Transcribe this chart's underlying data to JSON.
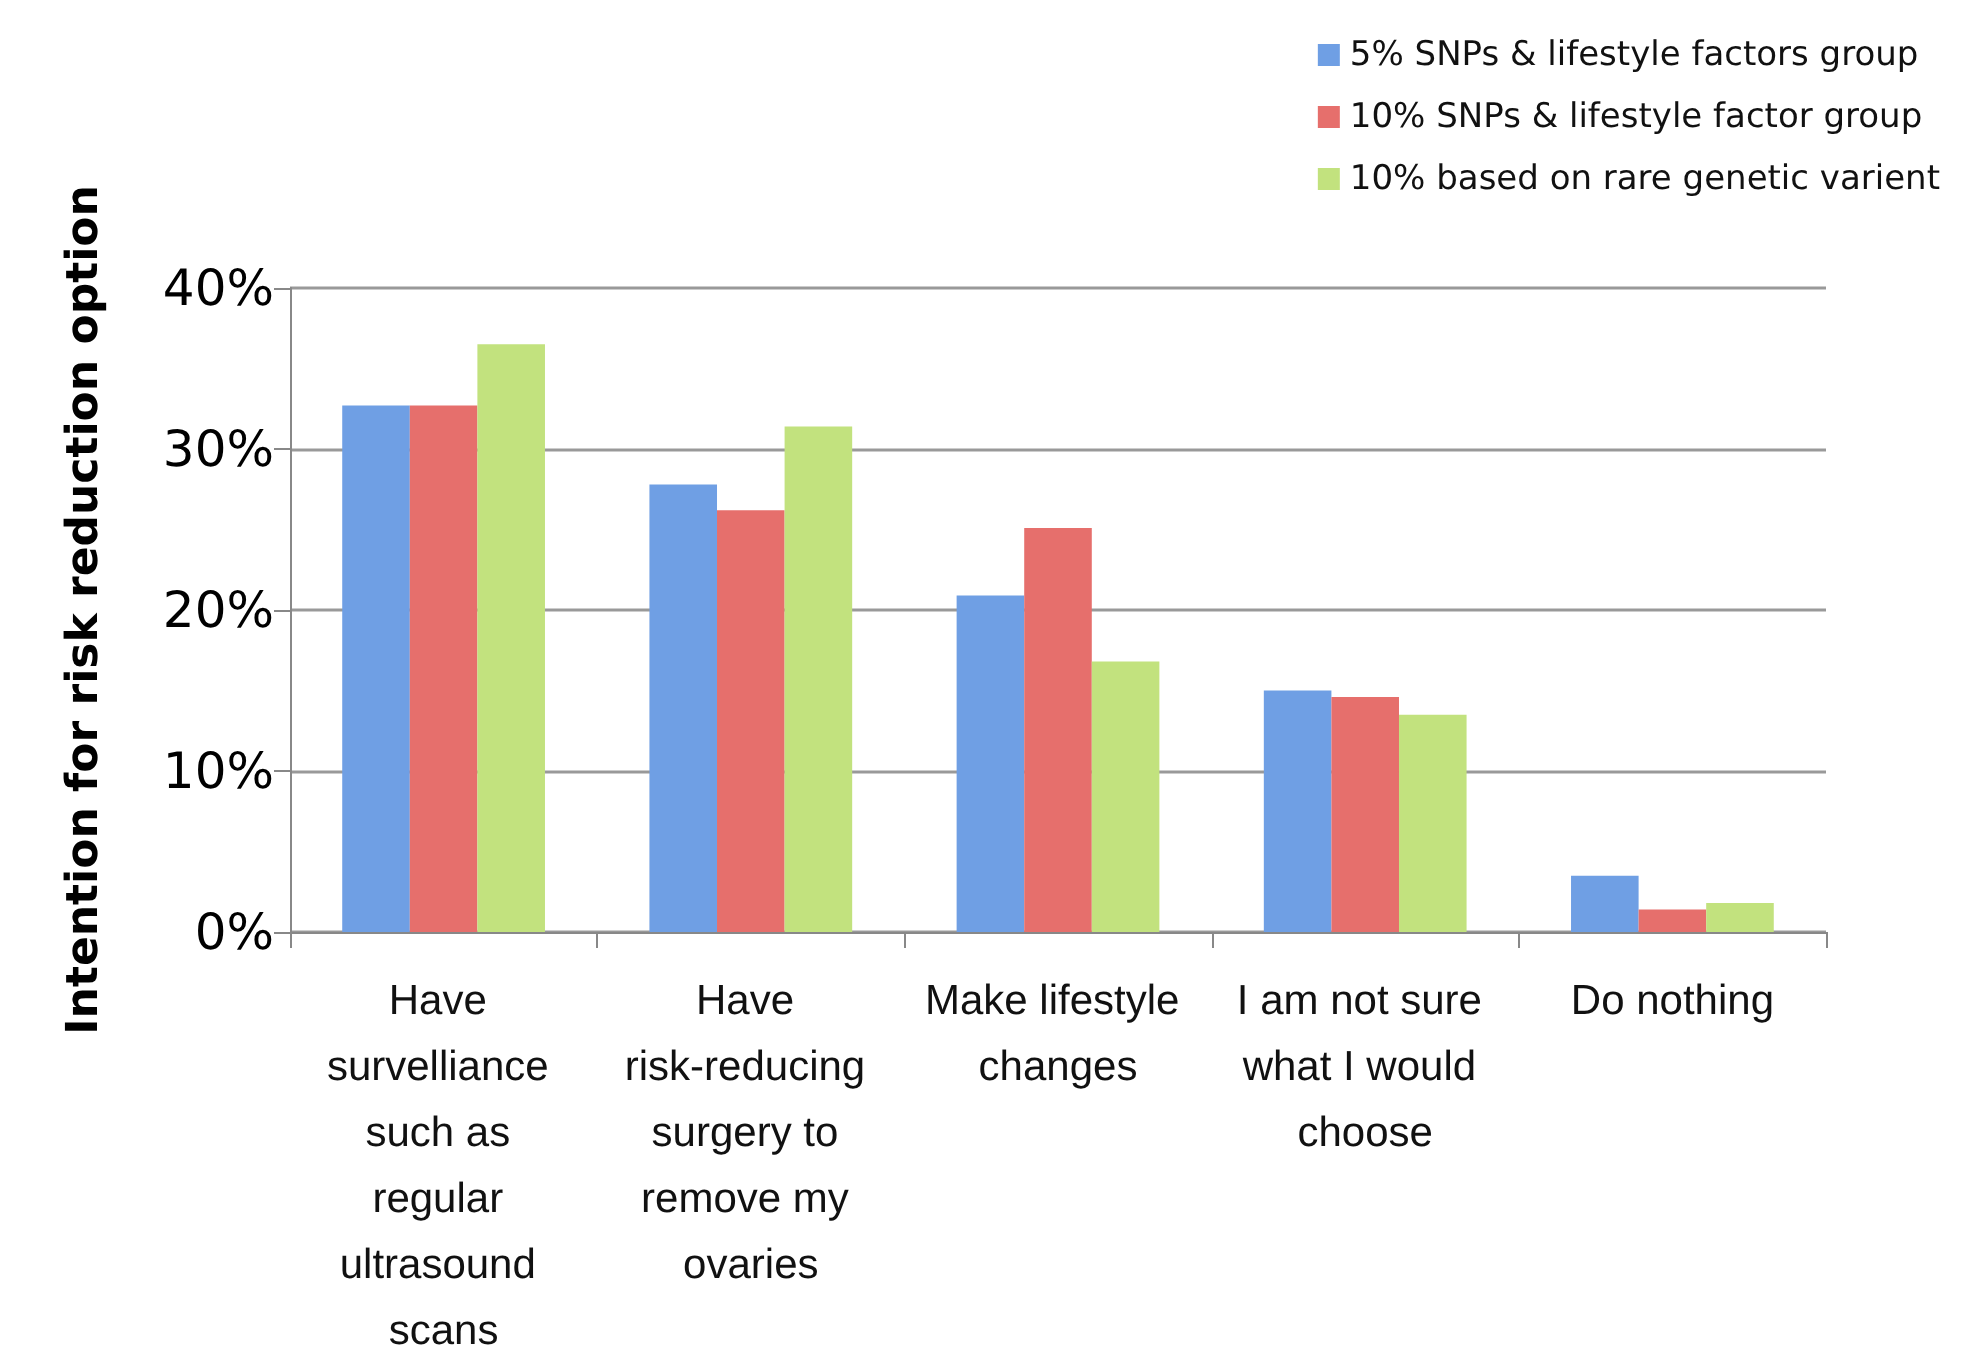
{
  "chart_data": {
    "type": "bar",
    "ylabel": "Intention for risk reduction option",
    "categories": [
      "Have survelliance such as regular ultrasound scans",
      "Have risk-reducing surgery to remove my ovaries",
      "Make lifestyle changes",
      "I am not sure what I would choose",
      "Do nothing"
    ],
    "series": [
      {
        "name": "5% SNPs & lifestyle factors group",
        "color": "#6f9fe4",
        "values": [
          32.7,
          27.8,
          20.9,
          15.0,
          3.5
        ]
      },
      {
        "name": "10% SNPs & lifestyle factor group",
        "color": "#e66f6c",
        "values": [
          32.7,
          26.2,
          25.1,
          14.6,
          1.4
        ]
      },
      {
        "name": "10% based on rare genetic varient",
        "color": "#c2e27e",
        "values": [
          36.5,
          31.4,
          16.8,
          13.5,
          1.8
        ]
      }
    ],
    "ylim": [
      0,
      40
    ],
    "yticks": [
      {
        "value": 0,
        "label": "0%"
      },
      {
        "value": 10,
        "label": "10%"
      },
      {
        "value": 20,
        "label": "20%"
      },
      {
        "value": 30,
        "label": "30%"
      },
      {
        "value": 40,
        "label": "40%"
      }
    ],
    "grid": "y",
    "legend": "top right"
  }
}
